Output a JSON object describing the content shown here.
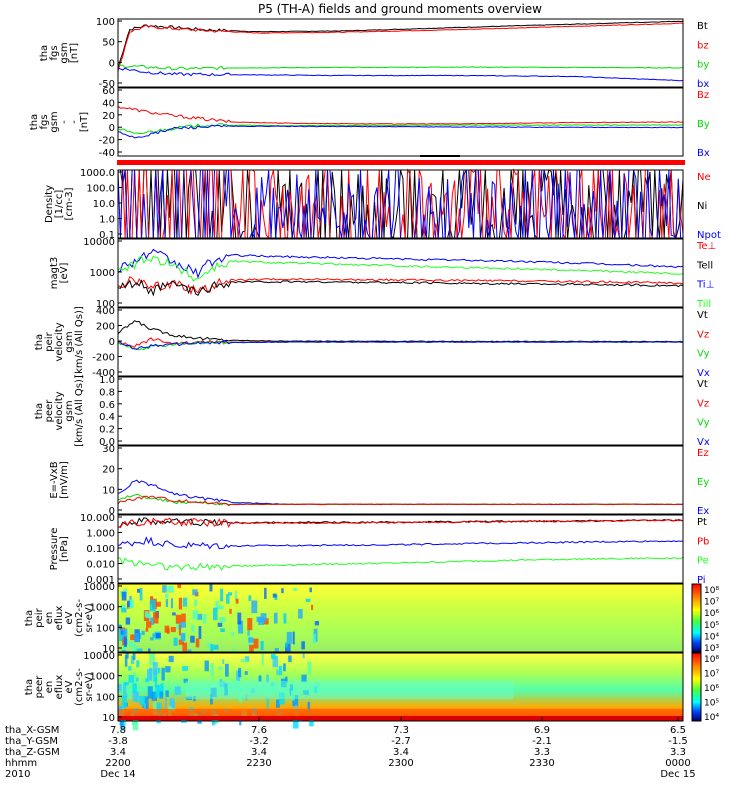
{
  "title": "P5 (TH-A) fields and ground moments overview",
  "colors": {
    "black": "#000000",
    "red": "#ff0000",
    "green": "#00dd00",
    "blue": "#0000ff",
    "bright_green": "#22ff22"
  },
  "chart_data": [
    {
      "type": "line",
      "ylabel": [
        "tha",
        "fgs",
        "gsm",
        "[nT]"
      ],
      "yticks": [
        "100",
        "50",
        "0",
        "-50"
      ],
      "ylim": [
        -55,
        105
      ],
      "legend": [
        {
          "name": "Bt",
          "color": "black"
        },
        {
          "name": "bz",
          "color": "red"
        },
        {
          "name": "by",
          "color": "green"
        },
        {
          "name": "bx",
          "color": "blue"
        }
      ],
      "series": [
        {
          "name": "Bt",
          "color": "black",
          "t": [
            0,
            2,
            5,
            15,
            25,
            40,
            60,
            100
          ],
          "y": [
            -10,
            80,
            90,
            80,
            75,
            77,
            85,
            100
          ]
        },
        {
          "name": "bz",
          "color": "red",
          "t": [
            0,
            2,
            5,
            15,
            25,
            40,
            60,
            100
          ],
          "y": [
            -20,
            75,
            87,
            78,
            72,
            74,
            80,
            95
          ]
        },
        {
          "name": "by",
          "color": "green",
          "t": [
            0,
            5,
            10,
            20,
            40,
            60,
            100
          ],
          "y": [
            -5,
            -8,
            -12,
            -10,
            -9,
            -8,
            -10
          ]
        },
        {
          "name": "bx",
          "color": "blue",
          "t": [
            0,
            5,
            10,
            20,
            40,
            60,
            80,
            100
          ],
          "y": [
            -10,
            -20,
            -25,
            -26,
            -28,
            -28,
            -30,
            -40
          ]
        }
      ]
    },
    {
      "type": "line",
      "ylabel": [
        "tha",
        "fgs",
        "gsm",
        "-",
        "-",
        "[nT]"
      ],
      "yticks": [
        "60",
        "40",
        "20",
        "0",
        "-20",
        "-40"
      ],
      "ylim": [
        -50,
        60
      ],
      "legend": [
        {
          "name": "Bz",
          "color": "red"
        },
        {
          "name": "By",
          "color": "green"
        },
        {
          "name": "Bx",
          "color": "blue"
        }
      ],
      "series": [
        {
          "name": "Bz",
          "color": "red",
          "t": [
            0,
            3,
            6,
            10,
            15,
            20,
            30,
            45,
            60,
            80,
            100
          ],
          "y": [
            30,
            25,
            20,
            15,
            10,
            5,
            3,
            2,
            2,
            4,
            5
          ]
        },
        {
          "name": "By",
          "color": "green",
          "t": [
            0,
            3,
            6,
            10,
            15,
            20,
            30,
            60,
            100
          ],
          "y": [
            -5,
            -15,
            -10,
            -5,
            0,
            0,
            -1,
            0,
            0
          ]
        },
        {
          "name": "Bx",
          "color": "blue",
          "t": [
            0,
            3,
            6,
            10,
            15,
            20,
            30,
            60,
            100
          ],
          "y": [
            -10,
            -20,
            -15,
            -5,
            -3,
            -2,
            -2,
            -3,
            -4
          ]
        }
      ]
    },
    {
      "type": "line",
      "ylabel": [
        "Density",
        "[1/cc]",
        "[cm-3]"
      ],
      "yscale": "log",
      "yticks": [
        "1000.0",
        "100.0",
        "10.0",
        "1.0",
        "0.1"
      ],
      "ylim": [
        0.1,
        1000
      ],
      "legend": [
        {
          "name": "Ne",
          "color": "red"
        },
        {
          "name": "Ni",
          "color": "black"
        },
        {
          "name": "Npot",
          "color": "blue"
        }
      ],
      "series": [
        {
          "name": "Ni",
          "color": "black",
          "t": [
            0,
            5,
            8,
            12,
            15,
            18,
            20,
            40,
            60,
            80,
            100
          ],
          "y": [
            1,
            3,
            20,
            10,
            2,
            1,
            1.2,
            1.5,
            2,
            3,
            5
          ]
        },
        {
          "name": "Ne",
          "color": "red",
          "t": [
            0,
            5,
            8,
            12,
            15,
            18,
            20,
            40,
            60,
            80,
            100
          ],
          "y": [
            0.8,
            2,
            15,
            8,
            1.5,
            0.8,
            0.8,
            0.8,
            0.8,
            0.8,
            1.2
          ]
        },
        {
          "name": "Npot",
          "color": "blue",
          "t": [
            0,
            5,
            8,
            12,
            15,
            18,
            20,
            40,
            60,
            80,
            100
          ],
          "y": [
            0.9,
            3,
            50,
            15,
            2,
            0.9,
            0.9,
            0.9,
            0.9,
            0.9,
            1.1
          ]
        }
      ]
    },
    {
      "type": "line",
      "ylabel": [
        "magt3",
        "[eV]"
      ],
      "yscale": "log",
      "yticks": [
        "10000",
        "1000",
        "100"
      ],
      "ylim": [
        30,
        10000
      ],
      "legend": [
        {
          "name": "Te⊥",
          "color": "red"
        },
        {
          "name": "Tell",
          "color": "black"
        },
        {
          "name": "Ti⊥",
          "color": "blue"
        },
        {
          "name": "Till",
          "color": "bright_green"
        }
      ],
      "series": [
        {
          "name": "Ti⊥",
          "color": "blue",
          "t": [
            0,
            3,
            6,
            10,
            14,
            20,
            30,
            50,
            70,
            90,
            100
          ],
          "y": [
            800,
            1500,
            3000,
            1200,
            500,
            2500,
            2200,
            1800,
            1500,
            1100,
            900
          ]
        },
        {
          "name": "Till",
          "color": "bright_green",
          "t": [
            0,
            3,
            6,
            10,
            14,
            20,
            30,
            50,
            70,
            90,
            100
          ],
          "y": [
            600,
            1200,
            2000,
            900,
            300,
            1500,
            1300,
            1000,
            800,
            600,
            500
          ]
        },
        {
          "name": "Te⊥",
          "color": "red",
          "t": [
            0,
            3,
            6,
            10,
            14,
            20,
            30,
            50,
            70,
            90,
            100
          ],
          "y": [
            200,
            300,
            150,
            250,
            100,
            300,
            320,
            300,
            280,
            250,
            230
          ]
        },
        {
          "name": "Tell",
          "color": "black",
          "t": [
            0,
            3,
            6,
            10,
            14,
            20,
            30,
            50,
            70,
            90,
            100
          ],
          "y": [
            150,
            250,
            120,
            200,
            90,
            250,
            260,
            240,
            220,
            200,
            180
          ]
        }
      ]
    },
    {
      "type": "line",
      "ylabel": [
        "tha",
        "peir",
        "velocity",
        "gsm",
        "[km/s (All Qs)]"
      ],
      "yticks": [
        "400",
        "200",
        "0",
        "-200",
        "-400"
      ],
      "ylim": [
        -400,
        400
      ],
      "legend": [
        {
          "name": "Vt",
          "color": "black"
        },
        {
          "name": "Vz",
          "color": "red"
        },
        {
          "name": "Vy",
          "color": "green"
        },
        {
          "name": "Vx",
          "color": "blue"
        }
      ],
      "series": [
        {
          "name": "Vt",
          "color": "black",
          "t": [
            0,
            3,
            6,
            10,
            15,
            20,
            30,
            100
          ],
          "y": [
            100,
            250,
            150,
            80,
            40,
            20,
            10,
            5
          ]
        },
        {
          "name": "Vz",
          "color": "red",
          "t": [
            0,
            3,
            6,
            10,
            15,
            30,
            100
          ],
          "y": [
            0,
            -50,
            40,
            -20,
            0,
            0,
            0
          ]
        },
        {
          "name": "Vy",
          "color": "green",
          "t": [
            0,
            3,
            6,
            10,
            15,
            30,
            100
          ],
          "y": [
            0,
            -100,
            -60,
            -20,
            -10,
            0,
            0
          ]
        },
        {
          "name": "Vx",
          "color": "blue",
          "t": [
            0,
            3,
            6,
            10,
            15,
            30,
            100
          ],
          "y": [
            0,
            -80,
            -40,
            -30,
            -10,
            0,
            0
          ]
        }
      ]
    },
    {
      "type": "line",
      "ylabel": [
        "tha",
        "peer",
        "velocity",
        "gsm",
        "[km/s (All Qs)]"
      ],
      "yticks": [
        "1.0",
        "0.8",
        "0.6",
        "0.4",
        "0.2",
        "0.0"
      ],
      "ylim": [
        0,
        1
      ],
      "legend": [
        {
          "name": "Vt",
          "color": "black"
        },
        {
          "name": "Vz",
          "color": "red"
        },
        {
          "name": "Vy",
          "color": "green"
        },
        {
          "name": "Vx",
          "color": "blue"
        }
      ],
      "series": []
    },
    {
      "type": "line",
      "ylabel": [
        "E=-VxB",
        "[mV/m]"
      ],
      "yticks": [
        "30",
        "20",
        "10",
        "0"
      ],
      "ylim": [
        -5,
        30
      ],
      "legend": [
        {
          "name": "Ez",
          "color": "red"
        },
        {
          "name": "Ey",
          "color": "green"
        },
        {
          "name": "Ex",
          "color": "blue"
        }
      ],
      "series": [
        {
          "name": "Ex",
          "color": "blue",
          "t": [
            0,
            3,
            6,
            10,
            15,
            20,
            30,
            100
          ],
          "y": [
            5,
            12,
            10,
            5,
            3,
            1,
            0,
            0
          ]
        },
        {
          "name": "Ey",
          "color": "green",
          "t": [
            0,
            3,
            6,
            10,
            15,
            20,
            30,
            100
          ],
          "y": [
            2,
            5,
            3,
            1,
            1,
            0,
            0,
            0
          ]
        },
        {
          "name": "Ez",
          "color": "red",
          "t": [
            0,
            3,
            6,
            10,
            15,
            20,
            30,
            100
          ],
          "y": [
            1,
            3,
            4,
            2,
            1,
            0,
            0,
            0
          ]
        }
      ]
    },
    {
      "type": "line",
      "ylabel": [
        "Pressure",
        "[nPa]"
      ],
      "yscale": "log",
      "yticks": [
        "10.000",
        "1.000",
        "0.100",
        "0.010",
        "0.001"
      ],
      "ylim": [
        0.001,
        10
      ],
      "legend": [
        {
          "name": "Pt",
          "color": "black"
        },
        {
          "name": "Pb",
          "color": "red"
        },
        {
          "name": "Pe",
          "color": "bright_green"
        },
        {
          "name": "Pi",
          "color": "blue"
        }
      ],
      "series": [
        {
          "name": "Pt",
          "color": "black",
          "t": [
            0,
            5,
            20,
            50,
            80,
            100
          ],
          "y": [
            3,
            4.5,
            3.5,
            3.8,
            4.5,
            5
          ]
        },
        {
          "name": "Pb",
          "color": "red",
          "t": [
            0,
            5,
            20,
            50,
            80,
            100
          ],
          "y": [
            2.8,
            4.2,
            3.3,
            3.6,
            4.3,
            4.8
          ]
        },
        {
          "name": "Pi",
          "color": "blue",
          "t": [
            0,
            5,
            10,
            20,
            50,
            80,
            100
          ],
          "y": [
            0.15,
            0.3,
            0.15,
            0.15,
            0.18,
            0.25,
            0.3
          ]
        },
        {
          "name": "Pe",
          "color": "bright_green",
          "t": [
            0,
            5,
            10,
            20,
            50,
            80,
            100
          ],
          "y": [
            0.02,
            0.015,
            0.008,
            0.01,
            0.015,
            0.025,
            0.03
          ]
        }
      ]
    },
    {
      "type": "heatmap",
      "ylabel": [
        "tha",
        "peir",
        "en",
        "eflux",
        "eV",
        "(cm2-s-",
        "sr-eV)"
      ],
      "yscale": "log",
      "yticks": [
        "10000",
        "1000",
        "100",
        "10"
      ],
      "ylim": [
        8,
        20000
      ],
      "colorbar_ticks": [
        "10⁸",
        "10⁷",
        "10⁶",
        "10⁵",
        "10⁴",
        "10³"
      ],
      "series": []
    },
    {
      "type": "heatmap",
      "ylabel": [
        "tha",
        "peer",
        "en",
        "eflux",
        "eV",
        "(cm2-s-",
        "sr-eV)"
      ],
      "yscale": "log",
      "yticks": [
        "10000",
        "1000",
        "100",
        "10"
      ],
      "ylim": [
        8,
        20000
      ],
      "colorbar_ticks": [
        "10⁸",
        "10⁷",
        "10⁶",
        "10⁵",
        "10⁴"
      ],
      "series": []
    }
  ],
  "xaxis": {
    "rows": [
      {
        "label": "tha_X-GSM",
        "values": [
          "7.8",
          "7.6",
          "7.3",
          "6.9",
          "6.5"
        ]
      },
      {
        "label": "tha_Y-GSM",
        "values": [
          "-3.8",
          "-3.2",
          "-2.7",
          "-2.1",
          "-1.5"
        ]
      },
      {
        "label": "tha_Z-GSM",
        "values": [
          "3.4",
          "3.4",
          "3.4",
          "3.3",
          "3.3"
        ]
      },
      {
        "label": "hhmm",
        "values": [
          "2200",
          "2230",
          "2300",
          "2330",
          "0000"
        ]
      },
      {
        "label": "2010",
        "values": [
          "Dec 14",
          "",
          "",
          "",
          "Dec 15"
        ]
      }
    ]
  }
}
